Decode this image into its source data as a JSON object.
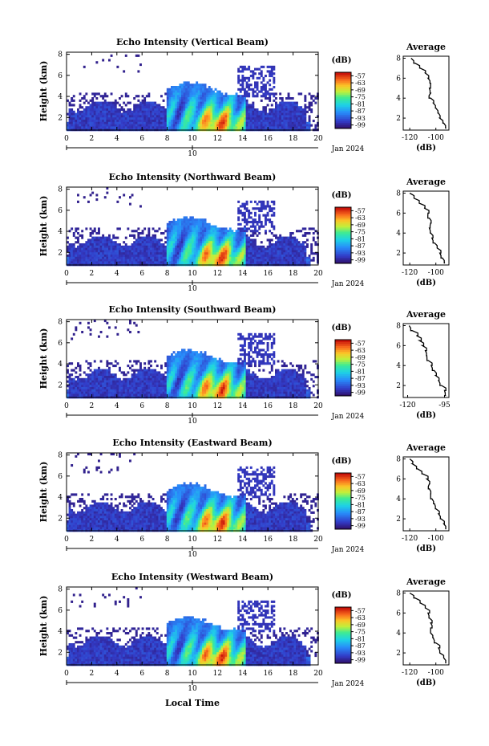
{
  "figure": {
    "xlabel_bottom": "Local Time",
    "date_label": "Jan 2024",
    "colorbar_unit": "(dB)",
    "avg_title": "Average",
    "avg_xlabel": "(dB)"
  },
  "chart_data": [
    {
      "type": "heatmap",
      "title": "Echo Intensity (Vertical Beam)",
      "ylabel": "Height (km)",
      "x_ticks": [
        "0",
        "2",
        "4",
        "6",
        "8",
        "10",
        "12",
        "14",
        "16",
        "18",
        "20"
      ],
      "y_ticks": [
        "2",
        "4",
        "6",
        "8"
      ],
      "xlim": [
        0,
        20
      ],
      "ylim": [
        0.8,
        8.2
      ],
      "day_tick": "10",
      "colorbar_ticks": [
        "-57",
        "-63",
        "-69",
        "-75",
        "-81",
        "-87",
        "-93",
        "-99"
      ],
      "colorbar_range": [
        -102,
        -54
      ],
      "average_profile": {
        "x_ticks": [
          "-120",
          "-100"
        ],
        "xlim": [
          -125,
          -90
        ],
        "height": [
          1.0,
          1.5,
          2.0,
          2.5,
          3.0,
          3.5,
          4.0,
          4.5,
          5.0,
          5.5,
          6.0,
          6.5,
          7.0,
          7.5,
          8.0
        ],
        "value": [
          -92,
          -94,
          -97,
          -98,
          -100,
          -102,
          -104,
          -104,
          -105,
          -104,
          -106,
          -108,
          -112,
          -116,
          -119
        ]
      }
    },
    {
      "type": "heatmap",
      "title": "Echo Intensity (Northward Beam)",
      "ylabel": "Height (km)",
      "x_ticks": [
        "0",
        "2",
        "4",
        "6",
        "8",
        "10",
        "12",
        "14",
        "16",
        "18",
        "20"
      ],
      "y_ticks": [
        "2",
        "4",
        "6",
        "8"
      ],
      "xlim": [
        0,
        20
      ],
      "ylim": [
        0.8,
        8.2
      ],
      "day_tick": "10",
      "colorbar_ticks": [
        "-57",
        "-63",
        "-69",
        "-75",
        "-81",
        "-87",
        "-93",
        "-99"
      ],
      "colorbar_range": [
        -102,
        -54
      ],
      "average_profile": {
        "x_ticks": [
          "-120",
          "-100"
        ],
        "xlim": [
          -125,
          -90
        ],
        "height": [
          1.0,
          1.5,
          2.0,
          2.5,
          3.0,
          3.5,
          4.0,
          4.5,
          5.0,
          5.5,
          6.0,
          6.5,
          7.0,
          7.5,
          8.0
        ],
        "value": [
          -93,
          -95,
          -97,
          -99,
          -101,
          -103,
          -104,
          -105,
          -104,
          -105,
          -106,
          -109,
          -113,
          -117,
          -120
        ]
      }
    },
    {
      "type": "heatmap",
      "title": "Echo Intensity (Southward Beam)",
      "ylabel": "Height (km)",
      "x_ticks": [
        "0",
        "2",
        "4",
        "6",
        "8",
        "10",
        "12",
        "14",
        "16",
        "18",
        "20"
      ],
      "y_ticks": [
        "2",
        "4",
        "6",
        "8"
      ],
      "xlim": [
        0,
        20
      ],
      "ylim": [
        0.8,
        8.2
      ],
      "day_tick": "10",
      "colorbar_ticks": [
        "-57",
        "-63",
        "-69",
        "-75",
        "-81",
        "-87",
        "-93",
        "-99"
      ],
      "colorbar_range": [
        -102,
        -54
      ],
      "average_profile": {
        "x_ticks": [
          "-120",
          "-95"
        ],
        "xlim": [
          -123,
          -92
        ],
        "height": [
          1.0,
          1.5,
          2.0,
          2.5,
          3.0,
          3.5,
          4.0,
          4.5,
          5.0,
          5.5,
          6.0,
          6.5,
          7.0,
          7.5,
          8.0
        ],
        "value": [
          -94,
          -95,
          -97,
          -99,
          -101,
          -102,
          -104,
          -106,
          -107,
          -108,
          -110,
          -112,
          -114,
          -117,
          -119
        ]
      }
    },
    {
      "type": "heatmap",
      "title": "Echo Intensity (Eastward Beam)",
      "ylabel": "Height (km)",
      "x_ticks": [
        "0",
        "2",
        "4",
        "6",
        "8",
        "10",
        "12",
        "14",
        "16",
        "18",
        "20"
      ],
      "y_ticks": [
        "2",
        "4",
        "6",
        "8"
      ],
      "xlim": [
        0,
        20
      ],
      "ylim": [
        0.8,
        8.2
      ],
      "day_tick": "10",
      "colorbar_ticks": [
        "-57",
        "-63",
        "-69",
        "-75",
        "-81",
        "-87",
        "-93",
        "-99"
      ],
      "colorbar_range": [
        -102,
        -54
      ],
      "average_profile": {
        "x_ticks": [
          "-120",
          "-100"
        ],
        "xlim": [
          -125,
          -90
        ],
        "height": [
          1.0,
          1.5,
          2.0,
          2.5,
          3.0,
          3.5,
          4.0,
          4.5,
          5.0,
          5.5,
          6.0,
          6.5,
          7.0,
          7.5,
          8.0
        ],
        "value": [
          -92,
          -94,
          -96,
          -98,
          -100,
          -101,
          -103,
          -104,
          -105,
          -105,
          -107,
          -110,
          -114,
          -118,
          -120
        ]
      }
    },
    {
      "type": "heatmap",
      "title": "Echo Intensity (Westward Beam)",
      "ylabel": "Height (km)",
      "x_ticks": [
        "0",
        "2",
        "4",
        "6",
        "8",
        "10",
        "12",
        "14",
        "16",
        "18",
        "20"
      ],
      "y_ticks": [
        "2",
        "4",
        "6",
        "8"
      ],
      "xlim": [
        0,
        20
      ],
      "ylim": [
        0.8,
        8.2
      ],
      "day_tick": "10",
      "colorbar_ticks": [
        "-57",
        "-63",
        "-69",
        "-75",
        "-81",
        "-87",
        "-93",
        "-99"
      ],
      "colorbar_range": [
        -102,
        -54
      ],
      "average_profile": {
        "x_ticks": [
          "-120",
          "-100"
        ],
        "xlim": [
          -125,
          -90
        ],
        "height": [
          1.0,
          1.5,
          2.0,
          2.5,
          3.0,
          3.5,
          4.0,
          4.5,
          5.0,
          5.5,
          6.0,
          6.5,
          7.0,
          7.5,
          8.0
        ],
        "value": [
          -92,
          -94,
          -97,
          -98,
          -100,
          -102,
          -104,
          -104,
          -104,
          -105,
          -106,
          -108,
          -112,
          -116,
          -120
        ]
      }
    }
  ]
}
